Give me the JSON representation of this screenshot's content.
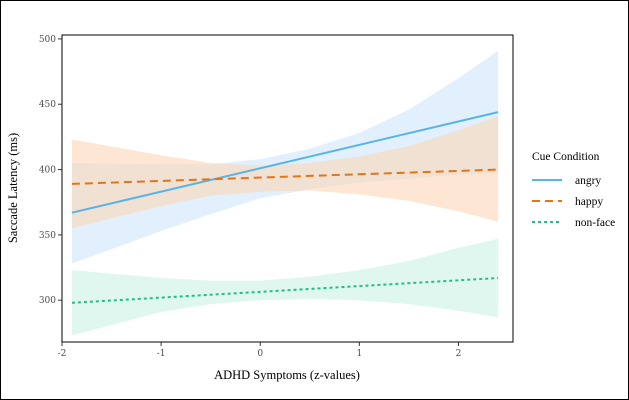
{
  "chart_data": {
    "type": "line",
    "title": "",
    "xlabel": "ADHD Symptoms (z-values)",
    "ylabel": "Saccade Latency (ms)",
    "xlim": [
      -2.0,
      2.55
    ],
    "ylim": [
      268,
      503
    ],
    "xticks": [
      -2,
      -1,
      0,
      1,
      2
    ],
    "yticks": [
      300,
      350,
      400,
      450,
      500
    ],
    "grid": false,
    "legend": {
      "title": "Cue Condition",
      "position": "right"
    },
    "series": [
      {
        "name": "angry",
        "color": "#56b4e9",
        "fill": "#cfe6fb",
        "dash": "solid",
        "x": [
          -1.9,
          2.4
        ],
        "y": [
          367,
          444
        ],
        "band": {
          "x": [
            -1.9,
            -1.0,
            -0.5,
            0.0,
            0.5,
            1.0,
            1.5,
            2.0,
            2.4
          ],
          "lower": [
            328,
            353,
            366,
            378,
            385,
            390,
            393,
            396,
            397
          ],
          "upper": [
            405,
            404,
            404,
            408,
            416,
            428,
            446,
            470,
            491
          ]
        }
      },
      {
        "name": "happy",
        "color": "#e1751a",
        "fill": "#fbd7b8",
        "dash": "long",
        "x": [
          -1.9,
          2.4
        ],
        "y": [
          389,
          400
        ],
        "band": {
          "x": [
            -1.9,
            -1.0,
            -0.5,
            0.0,
            0.5,
            1.0,
            1.5,
            2.0,
            2.4
          ],
          "lower": [
            355,
            372,
            380,
            383,
            384,
            381,
            376,
            368,
            360
          ],
          "upper": [
            423,
            411,
            405,
            403,
            405,
            410,
            418,
            430,
            441
          ]
        }
      },
      {
        "name": "non-face",
        "color": "#1fbf8b",
        "fill": "#c9f1e2",
        "dash": "dotted",
        "x": [
          -1.9,
          2.4
        ],
        "y": [
          298,
          317
        ],
        "band": {
          "x": [
            -1.9,
            -1.0,
            -0.5,
            0.0,
            0.5,
            1.0,
            1.5,
            2.0,
            2.4
          ],
          "lower": [
            273,
            291,
            297,
            300,
            301,
            300,
            297,
            292,
            287
          ],
          "upper": [
            323,
            317,
            315,
            315,
            318,
            323,
            330,
            340,
            347
          ]
        }
      }
    ]
  }
}
